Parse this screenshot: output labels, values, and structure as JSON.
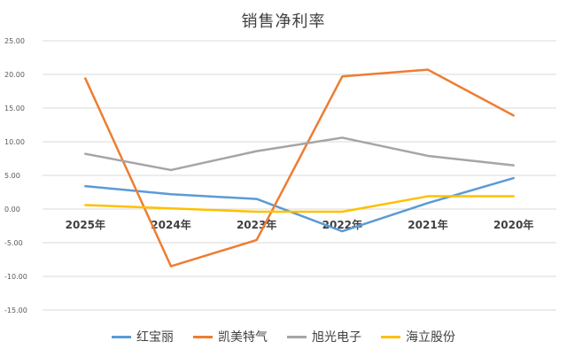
{
  "chart_data": {
    "type": "line",
    "title": "销售净利率",
    "categories": [
      "2025年",
      "2024年",
      "2023年",
      "2022年",
      "2021年",
      "2020年"
    ],
    "ylim": [
      -15,
      25
    ],
    "yticks": [
      "25.00",
      "20.00",
      "15.00",
      "10.00",
      "5.00",
      "0.00",
      "-5.00",
      "-10.00",
      "-15.00"
    ],
    "grid": true,
    "legend_position": "bottom",
    "series": [
      {
        "name": "红宝丽",
        "color": "#5B9BD5",
        "values": [
          3.4,
          2.2,
          1.5,
          -3.3,
          0.9,
          4.6
        ]
      },
      {
        "name": "凯美特气",
        "color": "#ED7D31",
        "values": [
          19.4,
          -8.5,
          -4.6,
          19.7,
          20.7,
          13.9
        ]
      },
      {
        "name": "旭光电子",
        "color": "#A5A5A5",
        "values": [
          8.2,
          5.8,
          8.6,
          10.6,
          7.9,
          6.5
        ]
      },
      {
        "name": "海立股份",
        "color": "#FFC000",
        "values": [
          0.6,
          0.1,
          -0.4,
          -0.4,
          1.9,
          1.9
        ]
      }
    ]
  }
}
